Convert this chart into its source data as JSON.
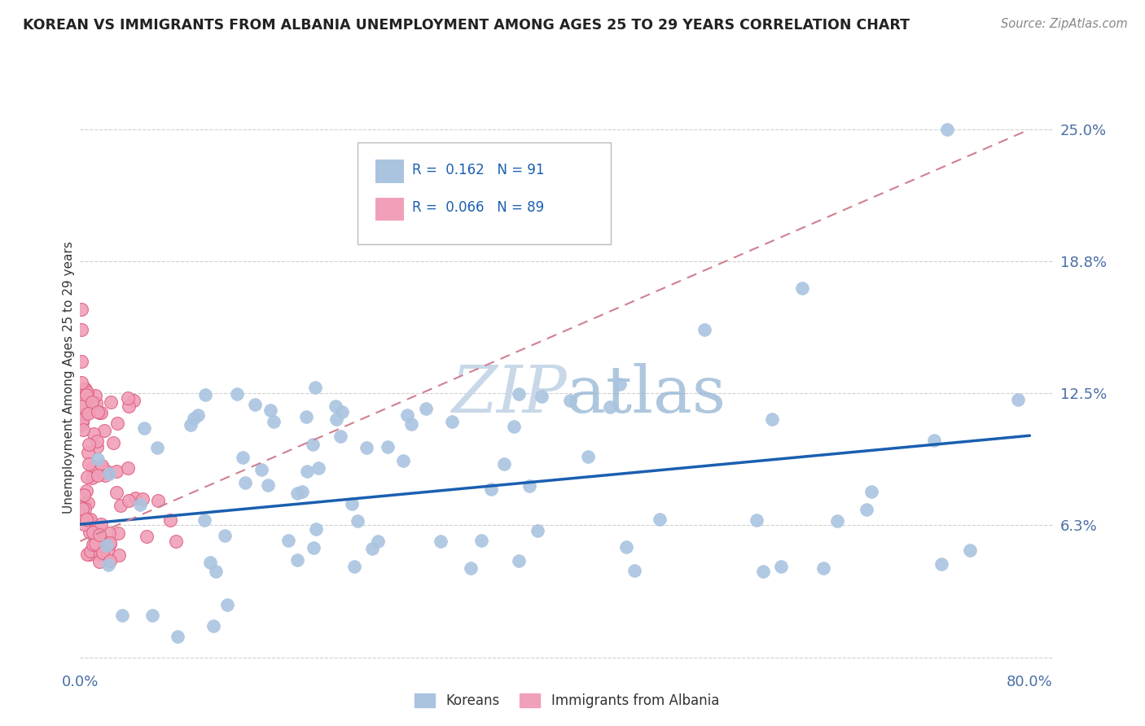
{
  "title": "KOREAN VS IMMIGRANTS FROM ALBANIA UNEMPLOYMENT AMONG AGES 25 TO 29 YEARS CORRELATION CHART",
  "source": "Source: ZipAtlas.com",
  "ylabel": "Unemployment Among Ages 25 to 29 years",
  "xlim": [
    0.0,
    0.82
  ],
  "ylim": [
    -0.005,
    0.27
  ],
  "ytick_vals": [
    0.0,
    0.0625,
    0.125,
    0.1875,
    0.25
  ],
  "ytick_labels": [
    "",
    "6.3%",
    "12.5%",
    "18.8%",
    "25.0%"
  ],
  "xtick_vals": [
    0.0,
    0.8
  ],
  "xtick_labels": [
    "0.0%",
    "80.0%"
  ],
  "korean_color": "#aac4e0",
  "albanian_color": "#f0a0b8",
  "albanian_edge_color": "#e06080",
  "korean_line_color": "#1a5fb0",
  "albanian_line_color": "#d08090",
  "grid_color": "#d0d0d0",
  "watermark_color": "#c8d8e8",
  "background_color": "#ffffff",
  "korean_line_x0": 0.0,
  "korean_line_x1": 0.8,
  "korean_line_y0": 0.063,
  "korean_line_y1": 0.105,
  "albanian_line_x0": 0.0,
  "albanian_line_x1": 0.8,
  "albanian_line_y0": 0.055,
  "albanian_line_y1": 0.25
}
